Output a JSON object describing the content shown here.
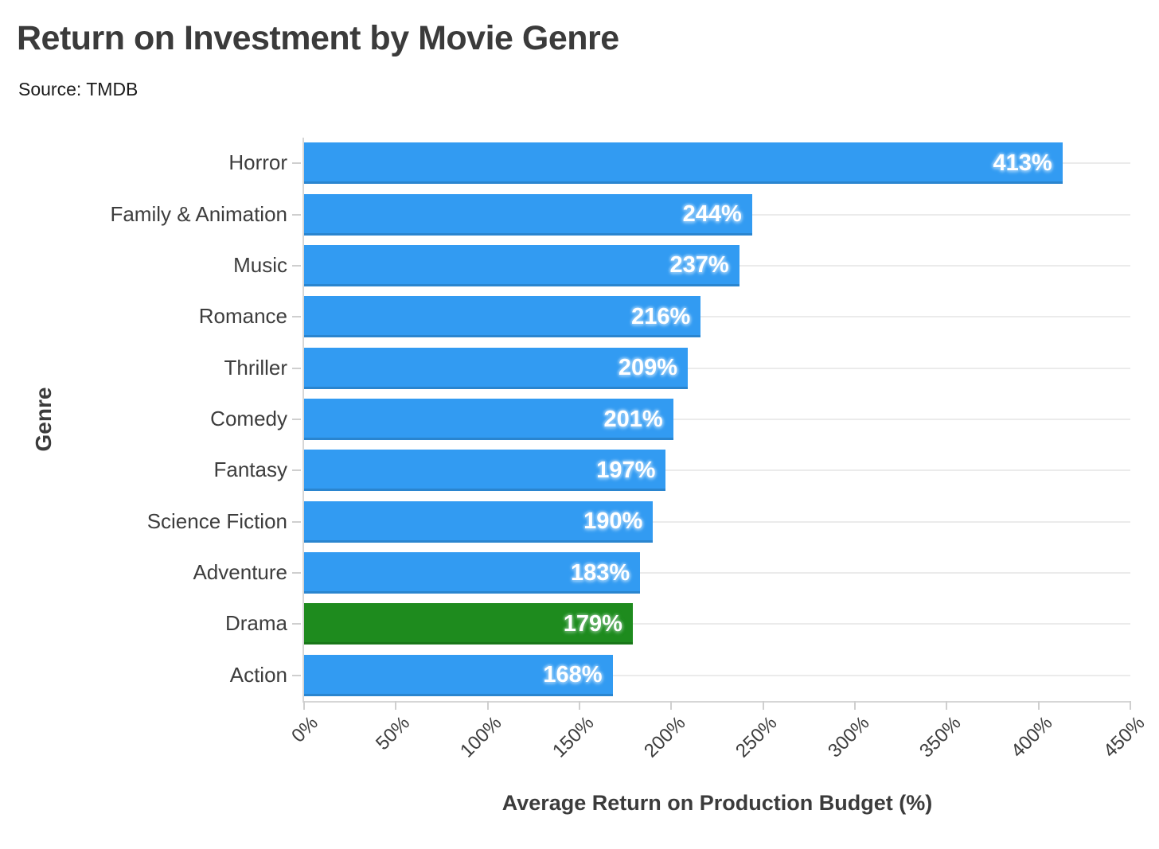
{
  "chart_data": {
    "type": "bar",
    "orientation": "horizontal",
    "title": "Return on Investment by Movie Genre",
    "subtitle": "Source: TMDB",
    "xlabel": "Average Return on Production Budget (%)",
    "ylabel": "Genre",
    "categories": [
      "Horror",
      "Family & Animation",
      "Music",
      "Romance",
      "Thriller",
      "Comedy",
      "Fantasy",
      "Science Fiction",
      "Adventure",
      "Drama",
      "Action"
    ],
    "values": [
      413,
      244,
      237,
      216,
      209,
      201,
      197,
      190,
      183,
      179,
      168
    ],
    "value_labels": [
      "413%",
      "244%",
      "237%",
      "216%",
      "209%",
      "201%",
      "197%",
      "190%",
      "183%",
      "179%",
      "168%"
    ],
    "highlight_category": "Drama",
    "xlim": [
      0,
      450
    ],
    "xticks": [
      0,
      50,
      100,
      150,
      200,
      250,
      300,
      350,
      400,
      450
    ],
    "xtick_labels": [
      "0%",
      "50%",
      "100%",
      "150%",
      "200%",
      "250%",
      "300%",
      "350%",
      "400%",
      "450%"
    ],
    "legend": "none",
    "grid": "horizontal-category-lines",
    "colors": {
      "bar_default": "#329BF2",
      "bar_highlight": "#1E8B1E",
      "bar_value_text": "#ffffff",
      "grid_line": "#ebebeb",
      "axis_line": "#d6d6d6",
      "tick_text": "#3d3d3d",
      "title_text": "#3b3b3b"
    }
  }
}
